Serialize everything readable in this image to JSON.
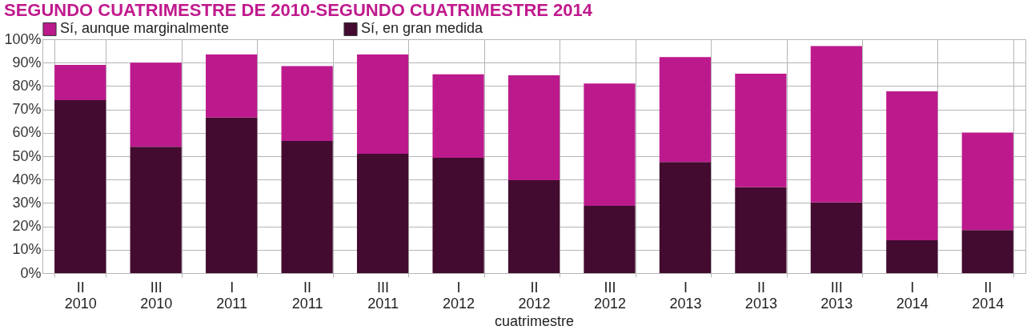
{
  "chart_data": {
    "type": "bar",
    "stacked": true,
    "title": "SEGUNDO CUATRIMESTRE DE 2010-SEGUNDO CUATRIMESTRE 2014",
    "xlabel": "cuatrimestre",
    "categories": [
      "II\n2010",
      "III\n2010",
      "I\n2011",
      "II\n2011",
      "III\n2011",
      "I\n2012",
      "II\n2012",
      "III\n2012",
      "I\n2013",
      "II\n2013",
      "III\n2013",
      "I\n2014",
      "II\n2014"
    ],
    "series": [
      {
        "name": "Sí, en gran medida",
        "color": "#420b2f",
        "values": [
          74,
          54,
          66.5,
          56.5,
          51,
          49.3,
          39.7,
          28.8,
          47.5,
          36.7,
          30.2,
          14,
          18.4
        ]
      },
      {
        "name": "Sí, aunque marginalmente",
        "color": "#bc1a8c",
        "values": [
          15,
          36,
          27,
          32,
          42.5,
          35.7,
          44.9,
          52.3,
          44.9,
          48.6,
          66.9,
          63.7,
          41.7
        ]
      }
    ],
    "ylim": [
      0,
      100
    ],
    "yticks": [
      {
        "value": 0,
        "label": "0%"
      },
      {
        "value": 10,
        "label": "10%"
      },
      {
        "value": 20,
        "label": "20%"
      },
      {
        "value": 30,
        "label": "30%"
      },
      {
        "value": 40,
        "label": "40%"
      },
      {
        "value": 50,
        "label": "50%"
      },
      {
        "value": 60,
        "label": "60%"
      },
      {
        "value": 70,
        "label": "70%"
      },
      {
        "value": 80,
        "label": "80%"
      },
      {
        "value": 90,
        "label": "90%"
      },
      {
        "value": 100,
        "label": "100%"
      }
    ],
    "grid": true,
    "legend": "top"
  }
}
